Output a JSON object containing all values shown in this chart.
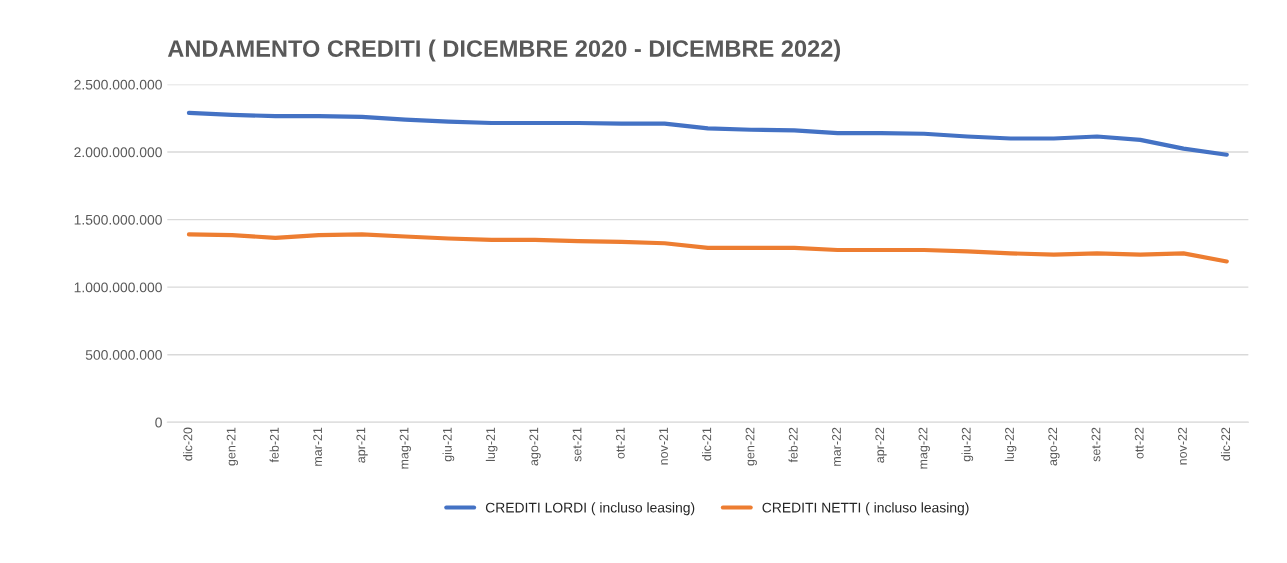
{
  "chart_data": {
    "type": "line",
    "title": "ANDAMENTO CREDITI ( DICEMBRE 2020 - DICEMBRE 2022)",
    "categories": [
      "dic-20",
      "gen-21",
      "feb-21",
      "mar-21",
      "apr-21",
      "mag-21",
      "giu-21",
      "lug-21",
      "ago-21",
      "set-21",
      "ott-21",
      "nov-21",
      "dic-21",
      "gen-22",
      "feb-22",
      "mar-22",
      "apr-22",
      "mag-22",
      "giu-22",
      "lug-22",
      "ago-22",
      "set-22",
      "ott-22",
      "nov-22",
      "dic-22"
    ],
    "series": [
      {
        "name": "CREDITI LORDI ( incluso leasing)",
        "color": "#4472c4",
        "values": [
          2290000000,
          2275000000,
          2265000000,
          2265000000,
          2260000000,
          2240000000,
          2225000000,
          2215000000,
          2215000000,
          2215000000,
          2210000000,
          2210000000,
          2175000000,
          2165000000,
          2160000000,
          2140000000,
          2140000000,
          2135000000,
          2115000000,
          2100000000,
          2100000000,
          2115000000,
          2090000000,
          2025000000,
          1980000000
        ]
      },
      {
        "name": "CREDITI NETTI ( incluso leasing)",
        "color": "#ed7d31",
        "values": [
          1390000000,
          1385000000,
          1365000000,
          1385000000,
          1390000000,
          1375000000,
          1360000000,
          1350000000,
          1350000000,
          1340000000,
          1335000000,
          1325000000,
          1290000000,
          1290000000,
          1290000000,
          1275000000,
          1275000000,
          1275000000,
          1265000000,
          1250000000,
          1240000000,
          1250000000,
          1240000000,
          1250000000,
          1190000000
        ]
      }
    ],
    "ylim": [
      0,
      2500000000
    ],
    "yticks": [
      0,
      {
        "value": 500000000,
        "label": "500.000.000"
      },
      {
        "value": 1000000000,
        "label": "1.000.000.000"
      },
      {
        "value": 1500000000,
        "label": "1.500.000.000"
      },
      {
        "value": 2000000000,
        "label": "2.000.000.000"
      },
      {
        "value": 2500000000,
        "label": "2.500.000.000"
      }
    ],
    "grid": "y",
    "legend": "bottom",
    "marker": "none",
    "line_style": "solid"
  }
}
